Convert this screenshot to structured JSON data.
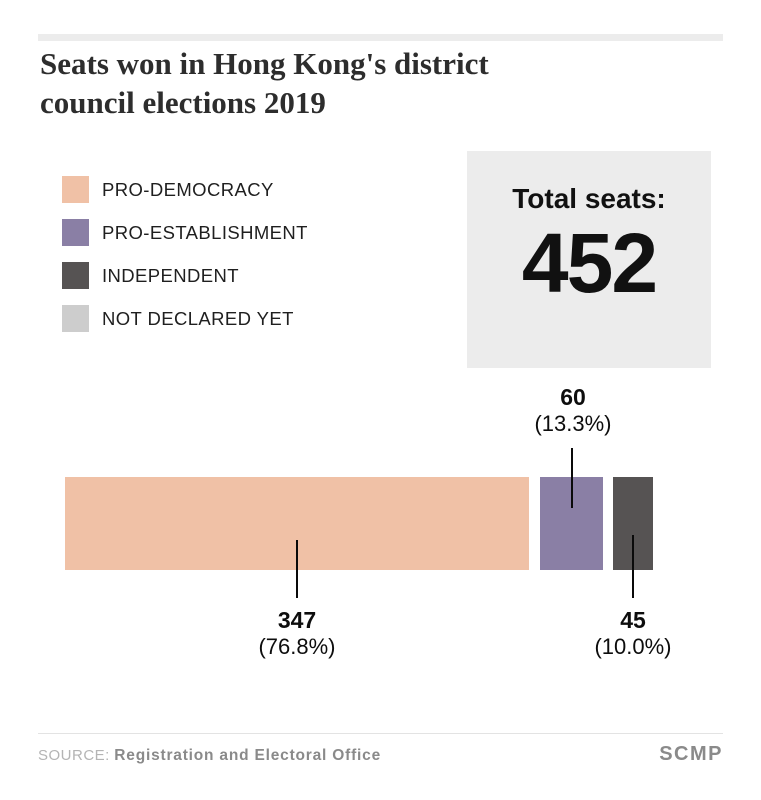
{
  "title_lines": [
    "Seats won in Hong Kong's district",
    "council elections 2019"
  ],
  "legend": {
    "items": [
      {
        "label": "PRO-DEMOCRACY",
        "color": "#f0c1a6"
      },
      {
        "label": "PRO-ESTABLISHMENT",
        "color": "#8a7fa5"
      },
      {
        "label": "INDEPENDENT",
        "color": "#565353"
      },
      {
        "label": "NOT DECLARED YET",
        "color": "#cdcdcd"
      }
    ]
  },
  "total_box": {
    "label": "Total seats:",
    "value": "452"
  },
  "chart_data": {
    "type": "bar",
    "orientation": "horizontal",
    "title": "Seats won in Hong Kong's district council elections 2019",
    "categories": [
      "PRO-DEMOCRACY",
      "PRO-ESTABLISHMENT",
      "INDEPENDENT",
      "NOT DECLARED YET"
    ],
    "values": [
      347,
      60,
      45,
      0
    ],
    "percents": [
      76.8,
      13.3,
      10.0,
      0
    ],
    "total": 452,
    "colors": [
      "#f0c1a6",
      "#8a7fa5",
      "#565353",
      "#cdcdcd"
    ],
    "grid": false,
    "legend_position": "top-left",
    "annotation_labels": [
      "347 (76.8%)",
      "60 (13.3%)",
      "45 (10.0%)"
    ]
  },
  "annotations": {
    "democracy": {
      "value": "347",
      "pct": "(76.8%)"
    },
    "establishment": {
      "value": "60",
      "pct": "(13.3%)"
    },
    "independent": {
      "value": "45",
      "pct": "(10.0%)"
    }
  },
  "footer": {
    "source_prefix": "SOURCE:",
    "source_name": "Registration and Electoral Office",
    "brand": "SCMP"
  }
}
